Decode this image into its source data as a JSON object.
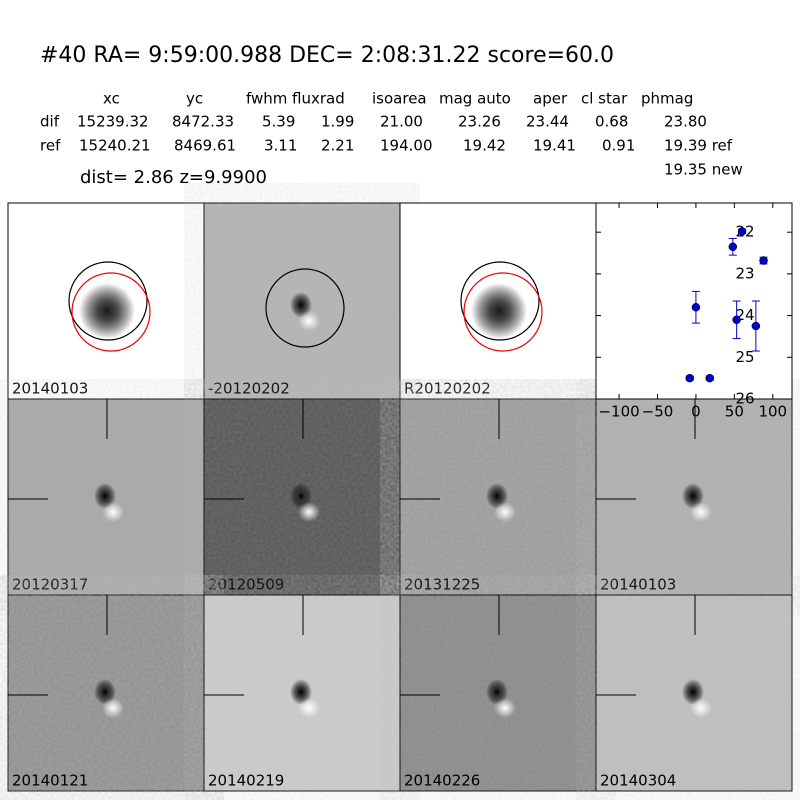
{
  "header": {
    "title": "#40   RA= 9:59:00.988 DEC= 2:08:31.22      score=60.0",
    "columns": [
      "xc",
      "yc",
      "fwhm",
      "fluxrad",
      "isoarea",
      "mag auto",
      "aper",
      "cl star",
      "phmag"
    ],
    "rows": [
      [
        "dif",
        "15239.32",
        "8472.33",
        "5.39",
        "1.99",
        "21.00",
        "23.26",
        "23.44",
        "0.68",
        "23.80"
      ],
      [
        "ref",
        "15240.21",
        "8469.61",
        "3.11",
        "2.21",
        "194.00",
        "19.42",
        "19.41",
        "0.91",
        "19.39 ref"
      ]
    ],
    "extra": "19.35 new",
    "dist_line": "dist=  2.86      z=9.9900"
  },
  "panels": [
    {
      "label": "20140103",
      "label_color": "#000000"
    },
    {
      "label": "-20120202",
      "label_color": "#000000"
    },
    {
      "label": "R20120202",
      "label_color": "#000000"
    },
    {
      "label": "20120317",
      "label_color": "#000000"
    },
    {
      "label": "20120509",
      "label_color": "#000000"
    },
    {
      "label": "20131225",
      "label_color": "#000000"
    },
    {
      "label": "20140103",
      "label_color": "#ff0000"
    },
    {
      "label": "20140121",
      "label_color": "#000000"
    },
    {
      "label": "20140219",
      "label_color": "#000000"
    },
    {
      "label": "20140226",
      "label_color": "#000000"
    },
    {
      "label": "20140304",
      "label_color": "#000000"
    }
  ],
  "chart_data": {
    "type": "scatter",
    "color": "#0000cc",
    "x": [
      -8,
      0,
      18,
      48,
      53,
      60,
      78,
      88
    ],
    "values": [
      25.5,
      23.8,
      25.5,
      22.35,
      24.1,
      21.98,
      24.25,
      22.68
    ],
    "errors": [
      0.05,
      0.38,
      0.05,
      0.2,
      0.45,
      0.05,
      0.6,
      0.08
    ],
    "xlim": [
      -130,
      125
    ],
    "ylim": [
      26,
      21.3
    ],
    "xticks": [
      {
        "value": -100,
        "label": "−100"
      },
      {
        "value": -50,
        "label": "−50"
      },
      0,
      50,
      100
    ],
    "yticks": [
      22,
      23,
      24,
      25,
      26
    ]
  }
}
